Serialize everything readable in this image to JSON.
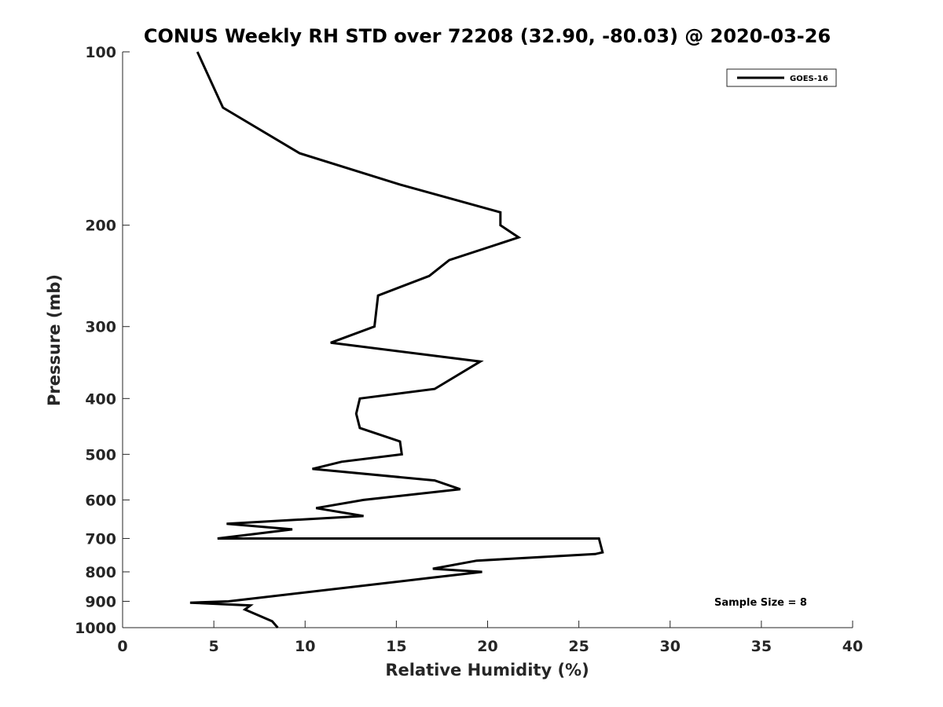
{
  "chart_data": {
    "type": "line",
    "title": "CONUS Weekly RH STD over 72208 (32.90, -80.03) @ 2020-03-26",
    "xlabel": "Relative Humidity (%)",
    "ylabel": "Pressure (mb)",
    "xlim": [
      0,
      40
    ],
    "ylim": [
      1000,
      100
    ],
    "y_scale": "log",
    "y_reversed": true,
    "xticks": [
      0,
      5,
      10,
      15,
      20,
      25,
      30,
      35,
      40
    ],
    "yticks": [
      100,
      200,
      300,
      400,
      500,
      600,
      700,
      800,
      900,
      1000
    ],
    "grid": false,
    "legend_position": "top-right",
    "series": [
      {
        "name": "GOES-16",
        "color": "#000000",
        "points": [
          [
            4.1,
            100
          ],
          [
            5.5,
            125
          ],
          [
            9.7,
            150
          ],
          [
            15.2,
            170
          ],
          [
            20.7,
            190
          ],
          [
            20.7,
            200
          ],
          [
            21.7,
            210
          ],
          [
            17.9,
            230
          ],
          [
            16.8,
            245
          ],
          [
            14.0,
            265
          ],
          [
            13.8,
            300
          ],
          [
            11.4,
            320
          ],
          [
            19.6,
            345
          ],
          [
            17.1,
            385
          ],
          [
            13.0,
            400
          ],
          [
            12.8,
            425
          ],
          [
            13.0,
            450
          ],
          [
            15.2,
            475
          ],
          [
            15.3,
            500
          ],
          [
            12.0,
            515
          ],
          [
            10.4,
            530
          ],
          [
            17.1,
            555
          ],
          [
            18.5,
            575
          ],
          [
            13.2,
            600
          ],
          [
            10.6,
            620
          ],
          [
            13.2,
            640
          ],
          [
            5.7,
            660
          ],
          [
            9.3,
            675
          ],
          [
            5.2,
            700
          ],
          [
            26.1,
            700
          ],
          [
            26.3,
            740
          ],
          [
            25.9,
            745
          ],
          [
            19.4,
            765
          ],
          [
            17.0,
            790
          ],
          [
            19.7,
            800
          ],
          [
            16.8,
            820
          ],
          [
            5.8,
            900
          ],
          [
            3.7,
            905
          ],
          [
            7.0,
            915
          ],
          [
            6.7,
            930
          ],
          [
            8.2,
            975
          ],
          [
            8.5,
            1000
          ]
        ]
      }
    ],
    "annotations": [
      "Sample Size = 8"
    ]
  }
}
